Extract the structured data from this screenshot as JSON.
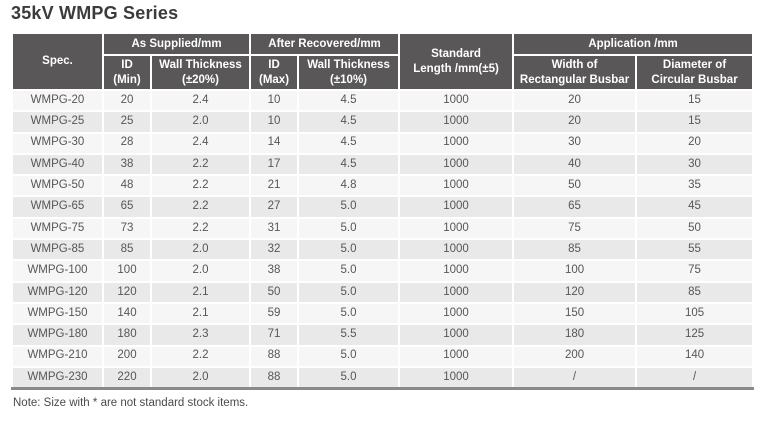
{
  "title": "35kV WMPG Series",
  "note": "Note: Size with * are not standard stock items.",
  "colors": {
    "header_bg": "#595757",
    "header_text": "#ffffff",
    "row_odd": "#f6f6f6",
    "row_even": "#e9e9e9",
    "bottom_border": "#8a8a8a",
    "title_text": "#3b3b3b"
  },
  "table": {
    "headers": {
      "spec": "Spec.",
      "as_supplied": "As Supplied/mm",
      "after_recovered": "After Recovered/mm",
      "standard_length": "Standard\nLength /mm(±5)",
      "application": "Application /mm",
      "id_min": "ID\n(Min)",
      "wall_thickness_20": "Wall Thickness\n(±20%)",
      "id_max": "ID\n(Max)",
      "wall_thickness_10": "Wall Thickness\n(±10%)",
      "width_rect_busbar": "Width of\nRectangular Busbar",
      "diameter_circ_busbar": "Diameter of\nCircular Busbar"
    },
    "rows": [
      [
        "WMPG-20",
        "20",
        "2.4",
        "10",
        "4.5",
        "1000",
        "20",
        "15"
      ],
      [
        "WMPG-25",
        "25",
        "2.0",
        "10",
        "4.5",
        "1000",
        "20",
        "15"
      ],
      [
        "WMPG-30",
        "28",
        "2.4",
        "14",
        "4.5",
        "1000",
        "30",
        "20"
      ],
      [
        "WMPG-40",
        "38",
        "2.2",
        "17",
        "4.5",
        "1000",
        "40",
        "30"
      ],
      [
        "WMPG-50",
        "48",
        "2.2",
        "21",
        "4.8",
        "1000",
        "50",
        "35"
      ],
      [
        "WMPG-65",
        "65",
        "2.2",
        "27",
        "5.0",
        "1000",
        "65",
        "45"
      ],
      [
        "WMPG-75",
        "73",
        "2.2",
        "31",
        "5.0",
        "1000",
        "75",
        "50"
      ],
      [
        "WMPG-85",
        "85",
        "2.0",
        "32",
        "5.0",
        "1000",
        "85",
        "55"
      ],
      [
        "WMPG-100",
        "100",
        "2.0",
        "38",
        "5.0",
        "1000",
        "100",
        "75"
      ],
      [
        "WMPG-120",
        "120",
        "2.1",
        "50",
        "5.0",
        "1000",
        "120",
        "85"
      ],
      [
        "WMPG-150",
        "140",
        "2.1",
        "59",
        "5.0",
        "1000",
        "150",
        "105"
      ],
      [
        "WMPG-180",
        "180",
        "2.3",
        "71",
        "5.5",
        "1000",
        "180",
        "125"
      ],
      [
        "WMPG-210",
        "200",
        "2.2",
        "88",
        "5.0",
        "1000",
        "200",
        "140"
      ],
      [
        "WMPG-230",
        "220",
        "2.0",
        "88",
        "5.0",
        "1000",
        "/",
        "/"
      ]
    ]
  }
}
